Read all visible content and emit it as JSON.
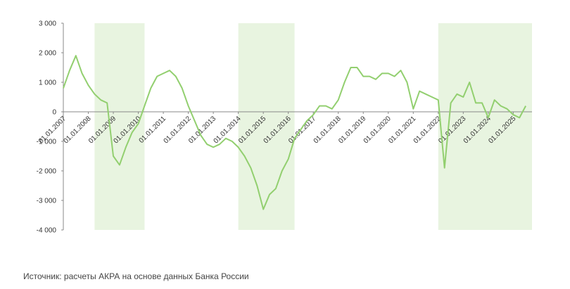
{
  "chart_data": {
    "type": "line",
    "x": [
      "01.01.2007",
      "01.04.2007",
      "01.07.2007",
      "01.10.2007",
      "01.01.2008",
      "01.04.2008",
      "01.07.2008",
      "01.10.2008",
      "01.01.2009",
      "01.04.2009",
      "01.07.2009",
      "01.10.2009",
      "01.01.2010",
      "01.04.2010",
      "01.07.2010",
      "01.10.2010",
      "01.01.2011",
      "01.04.2011",
      "01.07.2011",
      "01.10.2011",
      "01.01.2012",
      "01.04.2012",
      "01.07.2012",
      "01.10.2012",
      "01.01.2013",
      "01.04.2013",
      "01.07.2013",
      "01.10.2013",
      "01.01.2014",
      "01.04.2014",
      "01.07.2014",
      "01.10.2014",
      "01.01.2015",
      "01.04.2015",
      "01.07.2015",
      "01.10.2015",
      "01.01.2016",
      "01.04.2016",
      "01.07.2016",
      "01.10.2016",
      "01.01.2017",
      "01.04.2017",
      "01.07.2017",
      "01.10.2017",
      "01.01.2018",
      "01.04.2018",
      "01.07.2018",
      "01.10.2018",
      "01.01.2019",
      "01.04.2019",
      "01.07.2019",
      "01.10.2019",
      "01.01.2020",
      "01.04.2020",
      "01.07.2020",
      "01.10.2020",
      "01.01.2021",
      "01.04.2021",
      "01.07.2021",
      "01.10.2021",
      "01.01.2022",
      "01.04.2022",
      "01.07.2022",
      "01.10.2022",
      "01.01.2023",
      "01.04.2023",
      "01.07.2023",
      "01.10.2023",
      "01.01.2024",
      "01.04.2024",
      "01.07.2024",
      "01.10.2024",
      "01.01.2025",
      "01.04.2025",
      "01.07.2025"
    ],
    "series": [
      {
        "color": "#92cf6f",
        "values": [
          800,
          1400,
          1900,
          1300,
          900,
          600,
          400,
          300,
          -1500,
          -1800,
          -1200,
          -700,
          -400,
          200,
          800,
          1200,
          1300,
          1400,
          1200,
          800,
          200,
          -300,
          -800,
          -1100,
          -1200,
          -1100,
          -900,
          -1000,
          -1200,
          -1500,
          -1900,
          -2500,
          -3300,
          -2800,
          -2600,
          -2000,
          -1600,
          -900,
          -600,
          -300,
          -100,
          200,
          200,
          100,
          400,
          1000,
          1500,
          1500,
          1200,
          1200,
          1100,
          1300,
          1300,
          1200,
          1400,
          1000,
          100,
          700,
          600,
          500,
          400,
          -1900,
          300,
          600,
          500,
          1000,
          300,
          300,
          -200,
          400,
          200,
          100,
          -100,
          -200,
          200
        ]
      }
    ],
    "xlim": [
      "01.01.2007",
      "01.10.2025"
    ],
    "xticks": [
      "01.01.2007",
      "01.01.2008",
      "01.01.2009",
      "01.01.2010",
      "01.01.2011",
      "01.01.2012",
      "01.01.2013",
      "01.01.2014",
      "01.01.2015",
      "01.01.2016",
      "01.01.2017",
      "01.01.2018",
      "01.01.2019",
      "01.01.2020",
      "01.01.2021",
      "01.01.2022",
      "01.01.2023",
      "01.01.2024",
      "01.01.2025"
    ],
    "ylim": [
      -4000,
      3000
    ],
    "yticks": [
      {
        "value": -4000,
        "label": "-4 000"
      },
      {
        "value": -3000,
        "label": "-3 000"
      },
      {
        "value": -2000,
        "label": "-2 000"
      },
      {
        "value": -1000,
        "label": "-1 000"
      },
      0,
      {
        "value": 1000,
        "label": "1 000"
      },
      {
        "value": 2000,
        "label": "2 000"
      },
      {
        "value": 3000,
        "label": "3 000"
      }
    ],
    "shaded_periods": [
      [
        "01.04.2008",
        "01.04.2010"
      ],
      [
        "01.01.2014",
        "01.04.2016"
      ],
      [
        "01.01.2022",
        "01.10.2025"
      ]
    ],
    "shade_color": "#e8f4e0",
    "source": "Источник: расчеты АКРА на основе данных Банка России"
  }
}
